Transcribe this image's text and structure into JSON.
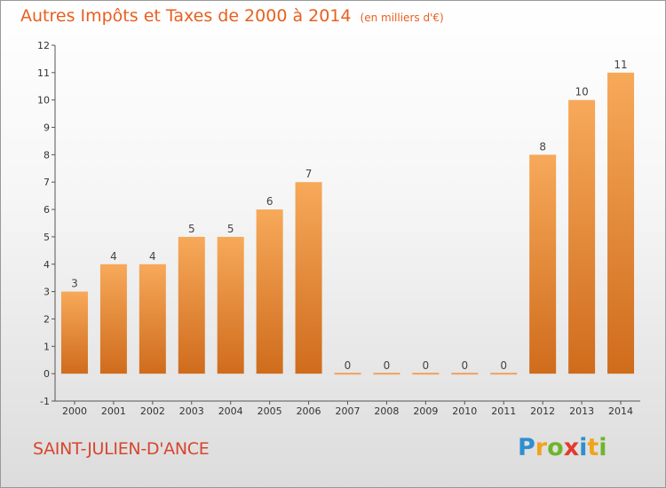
{
  "header": {
    "title": "Autres Impôts et Taxes de 2000 à 2014",
    "unit": "(en milliers d'€)"
  },
  "footer": {
    "commune": "SAINT-JULIEN-D'ANCE",
    "logo": "Proxiti"
  },
  "chart_data": {
    "type": "bar",
    "categories": [
      "2000",
      "2001",
      "2002",
      "2003",
      "2004",
      "2005",
      "2006",
      "2007",
      "2008",
      "2009",
      "2010",
      "2011",
      "2012",
      "2013",
      "2014"
    ],
    "values": [
      3,
      4,
      4,
      5,
      5,
      6,
      7,
      0,
      0,
      0,
      0,
      0,
      8,
      10,
      11
    ],
    "data_labels": [
      "3",
      "4",
      "4",
      "5",
      "5",
      "6",
      "7",
      "0",
      "0",
      "0",
      "0",
      "0",
      "8",
      "10",
      "11"
    ],
    "ylim": [
      -1,
      12
    ],
    "yticks": [
      "-1",
      "0",
      "1",
      "2",
      "3",
      "4",
      "5",
      "6",
      "7",
      "8",
      "9",
      "10",
      "11",
      "12"
    ],
    "grid": false,
    "bar_color_top": "#f7a95a",
    "bar_color_bottom": "#cf6c1c",
    "zero_bar_color": "#f0a060"
  }
}
